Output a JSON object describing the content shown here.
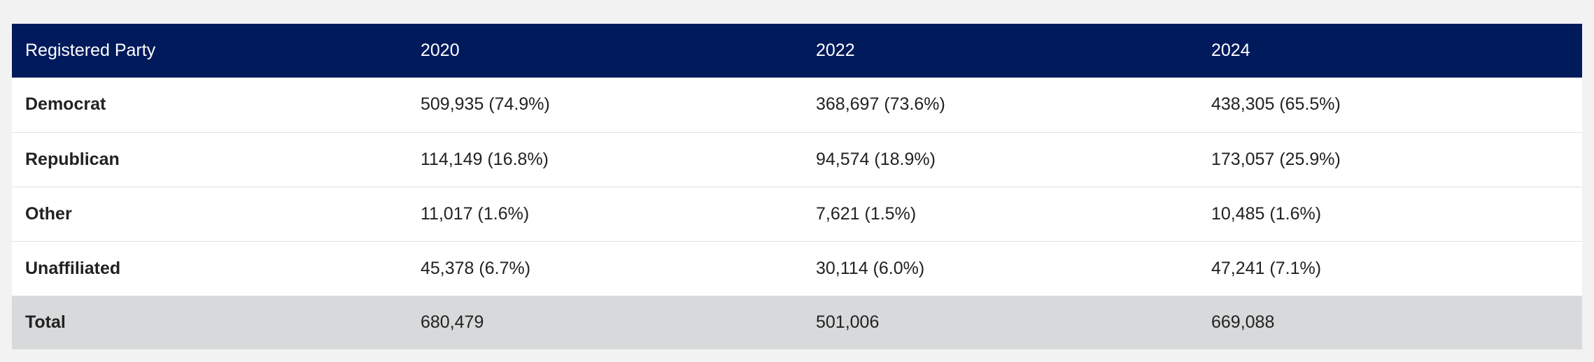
{
  "table": {
    "headers": [
      "Registered Party",
      "2020",
      "2022",
      "2024"
    ],
    "rows": [
      {
        "party": "Democrat",
        "values": [
          "509,935 (74.9%)",
          "368,697 (73.6%)",
          "438,305 (65.5%)"
        ]
      },
      {
        "party": "Republican",
        "values": [
          "114,149 (16.8%)",
          "94,574 (18.9%)",
          "173,057 (25.9%)"
        ]
      },
      {
        "party": "Other",
        "values": [
          "11,017 (1.6%)",
          "7,621 (1.5%)",
          "10,485 (1.6%)"
        ]
      },
      {
        "party": "Unaffiliated",
        "values": [
          "45,378 (6.7%)",
          "30,114 (6.0%)",
          "47,241 (7.1%)"
        ]
      }
    ],
    "total": {
      "label": "Total",
      "values": [
        "680,479",
        "501,006",
        "669,088"
      ]
    }
  },
  "colors": {
    "header_bg": "#001a5c",
    "header_text": "#ffffff",
    "row_bg": "#ffffff",
    "total_bg": "#d8d9da",
    "page_bg": "#f2f2f2"
  }
}
